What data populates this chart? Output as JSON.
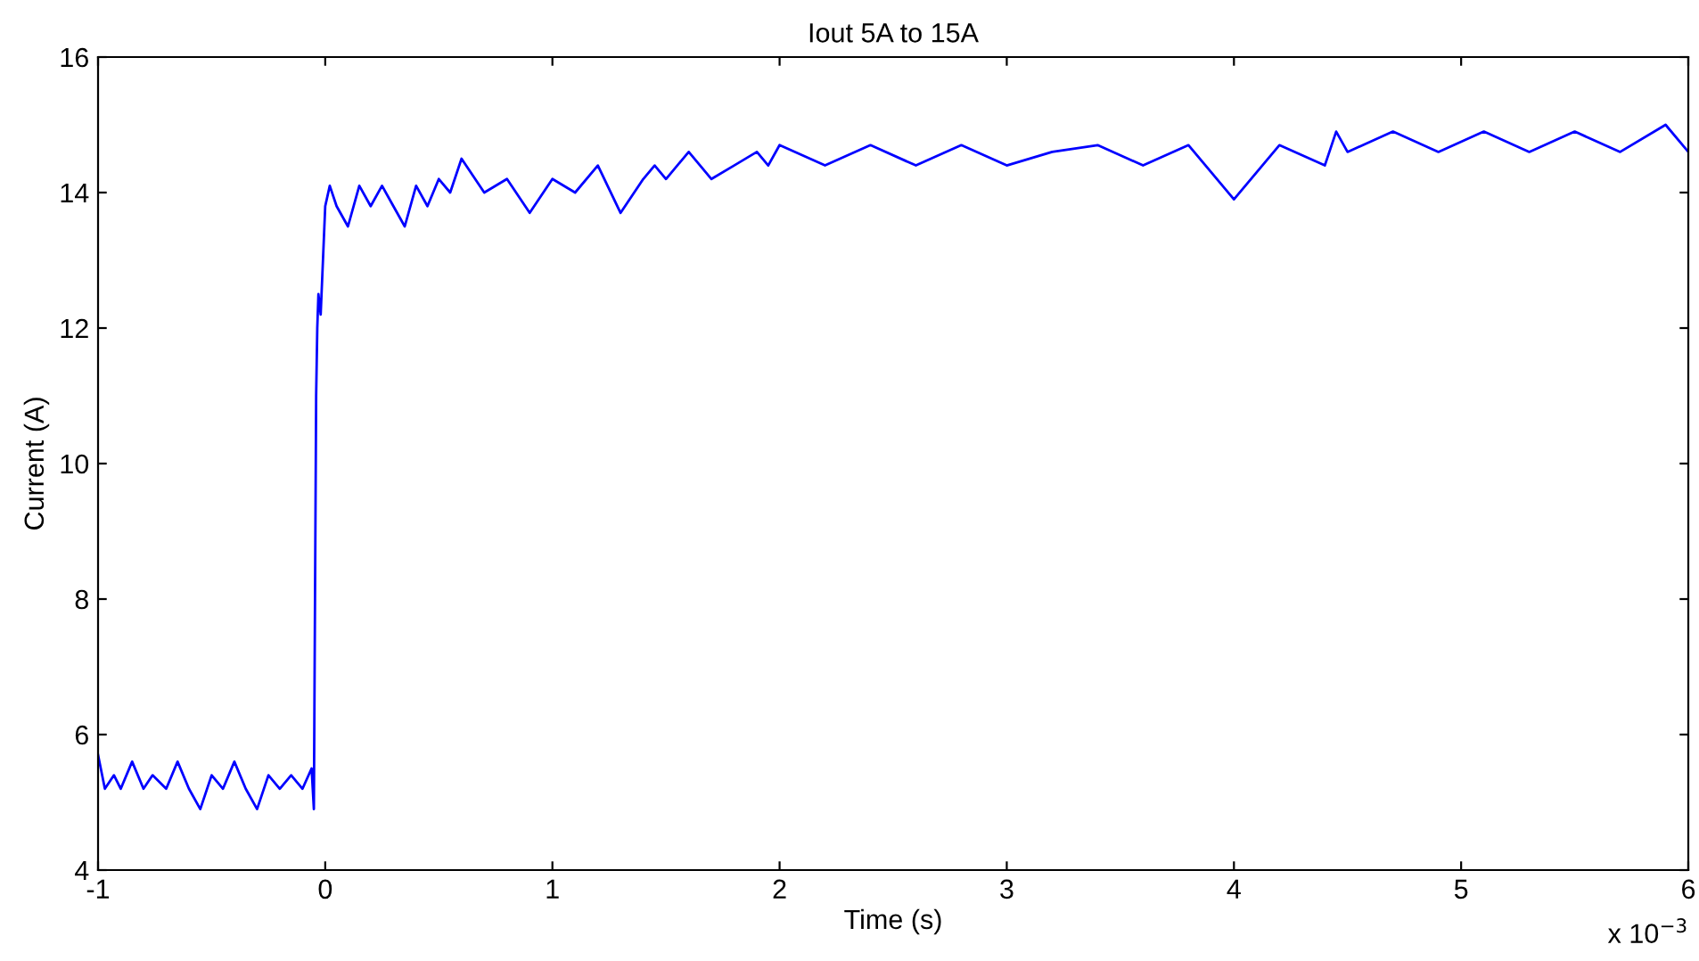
{
  "chart_data": {
    "type": "line",
    "title": "Iout 5A to 15A",
    "xlabel": "Time (s)",
    "ylabel": "Current (A)",
    "annotations": [
      "x 10$^{−3}$"
    ],
    "x": [
      -1,
      -0.97,
      -0.93,
      -0.9,
      -0.85,
      -0.8,
      -0.76,
      -0.7,
      -0.65,
      -0.6,
      -0.55,
      -0.5,
      -0.45,
      -0.4,
      -0.35,
      -0.3,
      -0.25,
      -0.2,
      -0.15,
      -0.1,
      -0.06,
      -0.05,
      -0.045,
      -0.04,
      -0.035,
      -0.03,
      -0.02,
      -0.01,
      0,
      0.02,
      0.05,
      0.1,
      0.15,
      0.2,
      0.25,
      0.3,
      0.35,
      0.4,
      0.45,
      0.5,
      0.55,
      0.6,
      0.7,
      0.8,
      0.9,
      1.0,
      1.1,
      1.2,
      1.3,
      1.4,
      1.45,
      1.5,
      1.6,
      1.7,
      1.8,
      1.9,
      1.95,
      2.0,
      2.2,
      2.4,
      2.6,
      2.8,
      3.0,
      3.2,
      3.4,
      3.6,
      3.8,
      4.0,
      4.2,
      4.4,
      4.45,
      4.5,
      4.7,
      4.9,
      5.1,
      5.3,
      5.5,
      5.7,
      5.9,
      6
    ],
    "series": [
      {
        "color": "#0000ff",
        "values": [
          5.7,
          5.2,
          5.4,
          5.2,
          5.6,
          5.2,
          5.4,
          5.2,
          5.6,
          5.2,
          4.9,
          5.4,
          5.2,
          5.6,
          5.2,
          4.9,
          5.4,
          5.2,
          5.4,
          5.2,
          5.5,
          4.9,
          8.0,
          11.0,
          12.0,
          12.5,
          12.2,
          13.0,
          13.8,
          14.1,
          13.8,
          13.5,
          14.1,
          13.8,
          14.1,
          13.8,
          13.5,
          14.1,
          13.8,
          14.2,
          14.0,
          14.5,
          14.0,
          14.2,
          13.7,
          14.2,
          14.0,
          14.4,
          13.7,
          14.2,
          14.4,
          14.2,
          14.6,
          14.2,
          14.4,
          14.6,
          14.4,
          14.7,
          14.4,
          14.7,
          14.4,
          14.7,
          14.4,
          14.6,
          14.7,
          14.4,
          14.7,
          13.9,
          14.7,
          14.4,
          14.9,
          14.6,
          14.9,
          14.6,
          14.9,
          14.6,
          14.9,
          14.6,
          15.0,
          14.6
        ]
      }
    ],
    "xlim": [
      -1,
      6
    ],
    "xticks": [
      -1,
      0,
      1,
      2,
      3,
      4,
      5,
      6
    ],
    "ylim": [
      4,
      16
    ],
    "yticks": [
      4,
      6,
      8,
      10,
      12,
      14,
      16
    ],
    "grid": false,
    "marker": "none",
    "line_style": "solid"
  }
}
